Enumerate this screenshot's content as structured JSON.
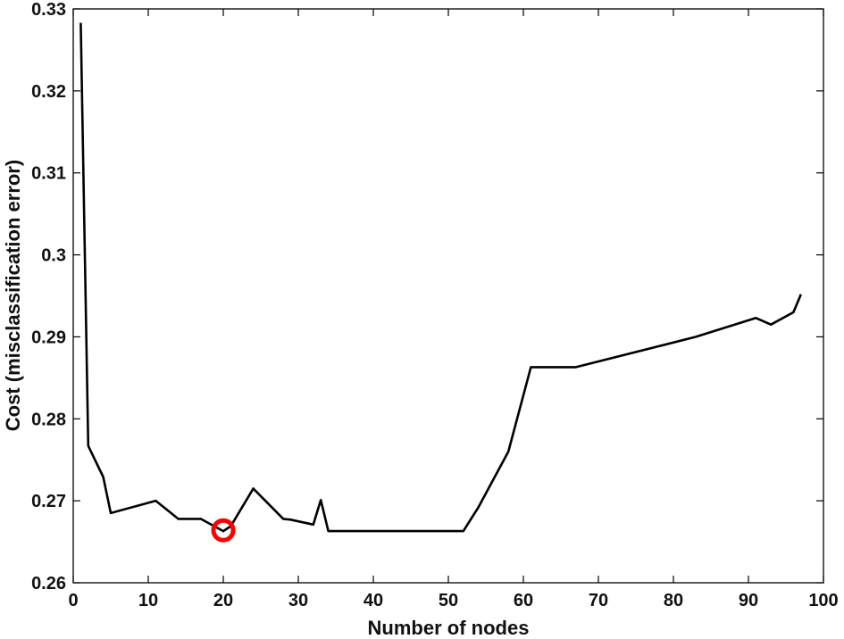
{
  "chart_data": {
    "type": "line",
    "title": "",
    "xlabel": "Number of  nodes",
    "ylabel": "Cost (misclassification error)",
    "xlim": [
      0,
      100
    ],
    "ylim": [
      0.26,
      0.33
    ],
    "grid": false,
    "x_ticks": [
      "0",
      "10",
      "20",
      "30",
      "40",
      "50",
      "60",
      "70",
      "80",
      "90",
      "100"
    ],
    "y_ticks": [
      "0.26",
      "0.27",
      "0.28",
      "0.29",
      "0.3",
      "0.31",
      "0.32",
      "0.33"
    ],
    "series": [
      {
        "color": "#000000",
        "x": [
          1,
          2,
          4,
          5,
          11,
          14,
          17,
          20,
          21,
          24,
          28,
          29,
          32,
          33,
          34,
          52,
          54,
          58,
          61,
          67,
          83,
          91,
          93,
          96,
          97
        ],
        "y": [
          0.3283,
          0.2767,
          0.2729,
          0.2685,
          0.27,
          0.2678,
          0.2678,
          0.2663,
          0.2669,
          0.2715,
          0.2678,
          0.2677,
          0.2671,
          0.2701,
          0.2663,
          0.2663,
          0.2692,
          0.276,
          0.2863,
          0.2863,
          0.29,
          0.2923,
          0.2915,
          0.293,
          0.2952
        ]
      }
    ],
    "highlight": {
      "x": 20,
      "y": 0.2664,
      "color": "#ff0000"
    }
  }
}
